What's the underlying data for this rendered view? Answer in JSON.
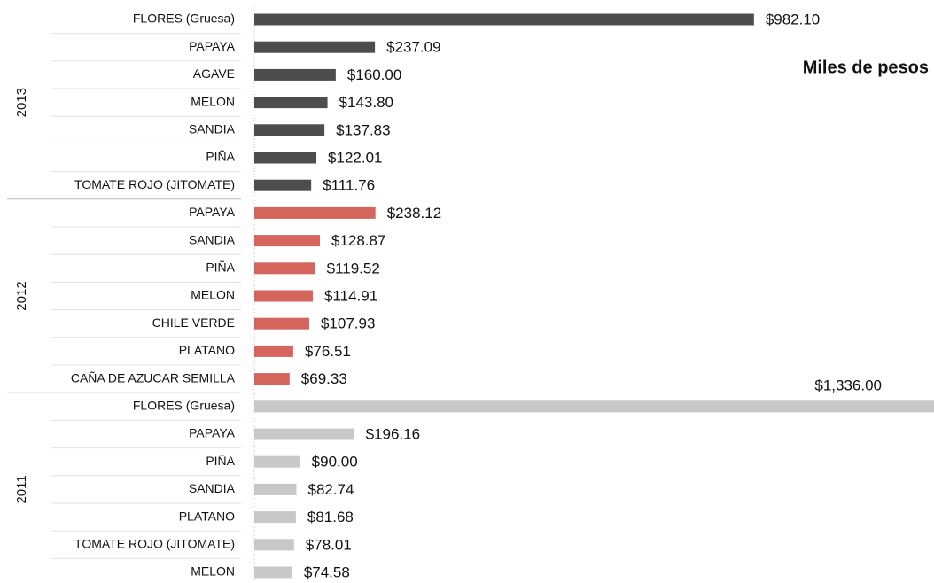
{
  "chart_data": {
    "type": "bar",
    "annotation": "Miles de pesos",
    "xlim": [
      0,
      1336
    ],
    "groups": [
      {
        "name": "2013",
        "color": "#4d4d4d",
        "categories": [
          "FLORES (Gruesa)",
          "PAPAYA",
          "AGAVE",
          "MELON",
          "SANDIA",
          "PIÑA",
          "TOMATE ROJO (JITOMATE)"
        ],
        "values": [
          982.1,
          237.09,
          160.0,
          143.8,
          137.83,
          122.01,
          111.76
        ],
        "value_labels": [
          "$982.10",
          "$237.09",
          "$160.00",
          "$143.80",
          "$137.83",
          "$122.01",
          "$111.76"
        ]
      },
      {
        "name": "2012",
        "color": "#d4645c",
        "categories": [
          "PAPAYA",
          "SANDIA",
          "PIÑA",
          "MELON",
          "CHILE VERDE",
          "PLATANO",
          "CAÑA DE AZUCAR SEMILLA"
        ],
        "values": [
          238.12,
          128.87,
          119.52,
          114.91,
          107.93,
          76.51,
          69.33
        ],
        "value_labels": [
          "$238.12",
          "$128.87",
          "$119.52",
          "$114.91",
          "$107.93",
          "$76.51",
          "$69.33"
        ]
      },
      {
        "name": "2011",
        "color": "#c8c8c8",
        "categories": [
          "FLORES (Gruesa)",
          "PAPAYA",
          "PIÑA",
          "SANDIA",
          "PLATANO",
          "TOMATE ROJO (JITOMATE)",
          "MELON"
        ],
        "values": [
          1336.0,
          196.16,
          90.0,
          82.74,
          81.68,
          78.01,
          74.58
        ],
        "value_labels": [
          "$1,336.00",
          "$196.16",
          "$90.00",
          "$82.74",
          "$81.68",
          "$78.01",
          "$74.58"
        ]
      }
    ]
  }
}
